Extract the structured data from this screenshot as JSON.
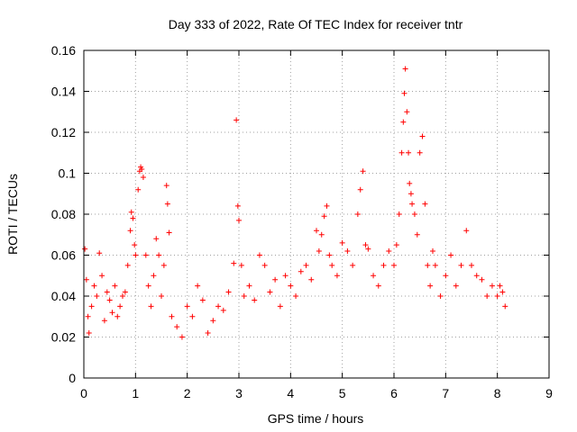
{
  "chart_data": {
    "type": "scatter",
    "title": "Day 333 of 2022, Rate Of TEC Index for receiver tntr",
    "xlabel": "GPS time / hours",
    "ylabel": "ROTI / TECUs",
    "xlim": [
      0,
      9
    ],
    "ylim": [
      0,
      0.16
    ],
    "x_ticks": [
      "0",
      "1",
      "2",
      "3",
      "4",
      "5",
      "6",
      "7",
      "8",
      "9"
    ],
    "y_ticks": [
      "0",
      "0.02",
      "0.04",
      "0.06",
      "0.08",
      "0.1",
      "0.12",
      "0.14",
      "0.16"
    ],
    "grid": true,
    "marker": "+",
    "color": "#ff0000",
    "series": [
      {
        "x": [
          0.02,
          0.05,
          0.08,
          0.1,
          0.15,
          0.2,
          0.25,
          0.3,
          0.35,
          0.4,
          0.45,
          0.5,
          0.55,
          0.6,
          0.65,
          0.7,
          0.75,
          0.8,
          0.85,
          0.9,
          0.92,
          0.95,
          0.98,
          1.0,
          1.05,
          1.08,
          1.1,
          1.12,
          1.15,
          1.2,
          1.25,
          1.3,
          1.35,
          1.4,
          1.45,
          1.5,
          1.55,
          1.6,
          1.62,
          1.65,
          1.7,
          1.8,
          1.9,
          2.0,
          2.1,
          2.2,
          2.3,
          2.4,
          2.5,
          2.6,
          2.7,
          2.8,
          2.9,
          2.95,
          2.98,
          3.0,
          3.05,
          3.1,
          3.2,
          3.3,
          3.4,
          3.5,
          3.6,
          3.7,
          3.8,
          3.9,
          4.0,
          4.1,
          4.2,
          4.3,
          4.4,
          4.5,
          4.55,
          4.6,
          4.65,
          4.7,
          4.75,
          4.8,
          4.9,
          5.0,
          5.1,
          5.2,
          5.3,
          5.35,
          5.4,
          5.45,
          5.5,
          5.6,
          5.7,
          5.8,
          5.9,
          6.0,
          6.05,
          6.1,
          6.15,
          6.18,
          6.2,
          6.22,
          6.25,
          6.28,
          6.3,
          6.33,
          6.35,
          6.4,
          6.45,
          6.5,
          6.55,
          6.6,
          6.65,
          6.7,
          6.75,
          6.8,
          6.9,
          7.0,
          7.1,
          7.2,
          7.3,
          7.4,
          7.5,
          7.6,
          7.7,
          7.8,
          7.9,
          8.0,
          8.05,
          8.1,
          8.15
        ],
        "y": [
          0.063,
          0.048,
          0.03,
          0.022,
          0.035,
          0.045,
          0.04,
          0.061,
          0.05,
          0.028,
          0.042,
          0.038,
          0.032,
          0.045,
          0.03,
          0.035,
          0.04,
          0.042,
          0.055,
          0.072,
          0.081,
          0.078,
          0.065,
          0.06,
          0.092,
          0.101,
          0.103,
          0.102,
          0.098,
          0.06,
          0.045,
          0.035,
          0.05,
          0.068,
          0.06,
          0.04,
          0.055,
          0.094,
          0.085,
          0.071,
          0.03,
          0.025,
          0.02,
          0.035,
          0.03,
          0.045,
          0.038,
          0.022,
          0.028,
          0.035,
          0.033,
          0.042,
          0.056,
          0.126,
          0.084,
          0.077,
          0.055,
          0.04,
          0.045,
          0.038,
          0.06,
          0.055,
          0.042,
          0.048,
          0.035,
          0.05,
          0.045,
          0.04,
          0.052,
          0.055,
          0.048,
          0.072,
          0.062,
          0.07,
          0.079,
          0.084,
          0.06,
          0.055,
          0.05,
          0.066,
          0.062,
          0.055,
          0.08,
          0.092,
          0.101,
          0.065,
          0.063,
          0.05,
          0.045,
          0.055,
          0.062,
          0.055,
          0.065,
          0.08,
          0.11,
          0.125,
          0.139,
          0.151,
          0.13,
          0.11,
          0.095,
          0.09,
          0.085,
          0.08,
          0.07,
          0.11,
          0.118,
          0.085,
          0.055,
          0.045,
          0.062,
          0.055,
          0.04,
          0.05,
          0.06,
          0.045,
          0.055,
          0.072,
          0.055,
          0.05,
          0.048,
          0.04,
          0.045,
          0.04,
          0.045,
          0.042,
          0.035
        ]
      }
    ]
  }
}
